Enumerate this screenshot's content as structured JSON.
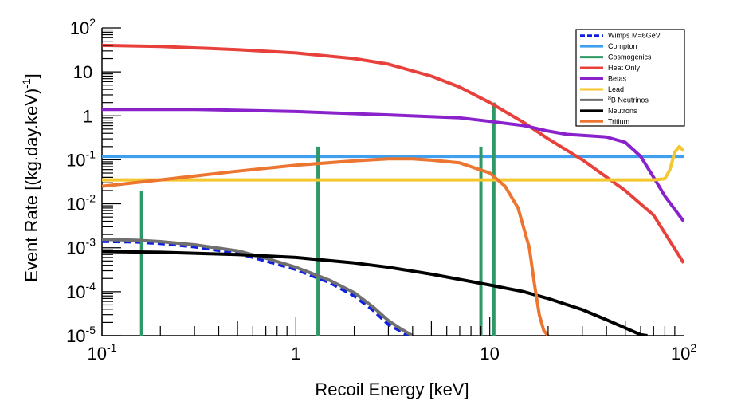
{
  "chart_data": {
    "type": "line",
    "xlabel": "Recoil Energy [keV]",
    "ylabel": "Event Rate [(kg.day.keV)",
    "ylabel_exp": "-1",
    "ylabel_close": "]",
    "x_scale": "log",
    "y_scale": "log",
    "xlim": [
      0.1,
      100
    ],
    "ylim": [
      1e-05,
      100
    ],
    "grid": false,
    "legend_position": "top-right",
    "x_ticks": [
      {
        "value": 0.1,
        "base": "10",
        "exp": "-1"
      },
      {
        "value": 1,
        "base": "1",
        "exp": ""
      },
      {
        "value": 10,
        "base": "10",
        "exp": ""
      },
      {
        "value": 100,
        "base": "10",
        "exp": "2"
      }
    ],
    "y_ticks": [
      {
        "value": 100,
        "base": "10",
        "exp": "2"
      },
      {
        "value": 10,
        "base": "10",
        "exp": ""
      },
      {
        "value": 1,
        "base": "1",
        "exp": ""
      },
      {
        "value": 0.1,
        "base": "10",
        "exp": "-1"
      },
      {
        "value": 0.01,
        "base": "10",
        "exp": "-2"
      },
      {
        "value": 0.001,
        "base": "10",
        "exp": "-3"
      },
      {
        "value": 0.0001,
        "base": "10",
        "exp": "-4"
      },
      {
        "value": 1e-05,
        "base": "10",
        "exp": "-5"
      }
    ],
    "series": [
      {
        "name": "Wimps M=6GeV",
        "color": "#1020e0",
        "dash": true,
        "width": 4,
        "x": [
          0.1,
          0.15,
          0.2,
          0.3,
          0.5,
          0.7,
          1.0,
          1.5,
          2.0,
          2.5,
          3.0,
          3.5,
          3.8
        ],
        "y": [
          0.0014,
          0.00135,
          0.00125,
          0.00105,
          0.00075,
          0.0005,
          0.00032,
          0.00016,
          8e-05,
          3.8e-05,
          1.8e-05,
          1.25e-05,
          1e-05
        ]
      },
      {
        "name": "Compton",
        "color": "#40a0ee",
        "dash": false,
        "width": 4,
        "x": [
          0.1,
          100
        ],
        "y": [
          0.12,
          0.12
        ]
      },
      {
        "name": "Cosmogenics",
        "color": "#2e9966",
        "dash": false,
        "width": 4,
        "spikes": true,
        "x": [
          0.16,
          1.3,
          9.0,
          10.5
        ],
        "y": [
          0.02,
          0.2,
          0.2,
          2.0
        ]
      },
      {
        "name": "Heat Only",
        "color": "#e8413c",
        "dash": false,
        "width": 4,
        "x": [
          0.1,
          0.2,
          0.5,
          1.0,
          2.0,
          3.0,
          5.0,
          7.0,
          10.0,
          15.0,
          20.0,
          30.0,
          50.0,
          70.0,
          100.0
        ],
        "y": [
          40,
          38,
          32,
          27,
          20,
          15,
          8,
          4.5,
          2.0,
          0.7,
          0.3,
          0.1,
          0.02,
          0.0055,
          0.00045
        ]
      },
      {
        "name": "Betas",
        "color": "#8a22cc",
        "dash": false,
        "width": 4,
        "x": [
          0.1,
          0.3,
          1.0,
          3.0,
          7.0,
          10.0,
          15.0,
          20.0,
          25.0,
          30.0,
          40.0,
          50.0,
          60.0,
          70.0,
          80.0,
          100.0
        ],
        "y": [
          1.4,
          1.4,
          1.25,
          1.05,
          0.9,
          0.75,
          0.6,
          0.45,
          0.38,
          0.36,
          0.33,
          0.25,
          0.12,
          0.04,
          0.015,
          0.004
        ]
      },
      {
        "name": "Lead",
        "color": "#f5c72e",
        "dash": false,
        "width": 4,
        "x": [
          0.1,
          10,
          70,
          80,
          85,
          90,
          95,
          100
        ],
        "y": [
          0.035,
          0.035,
          0.035,
          0.037,
          0.06,
          0.15,
          0.2,
          0.16
        ]
      },
      {
        "name": "B Neutrinos",
        "name_sup": "8",
        "color": "#707070",
        "dash": false,
        "width": 4,
        "x": [
          0.1,
          0.15,
          0.2,
          0.3,
          0.5,
          0.7,
          1.0,
          1.5,
          2.0,
          2.5,
          3.0,
          3.5,
          4.0
        ],
        "y": [
          0.00155,
          0.00148,
          0.00138,
          0.00117,
          0.00085,
          0.00058,
          0.00036,
          0.00018,
          9.5e-05,
          4.5e-05,
          2.2e-05,
          1.4e-05,
          1e-05
        ]
      },
      {
        "name": "Neutrons",
        "color": "#000000",
        "dash": false,
        "width": 4,
        "x": [
          0.1,
          0.2,
          0.5,
          1.0,
          2.0,
          3.0,
          5.0,
          10.0,
          15.0,
          20.0,
          30.0,
          40.0,
          50.0,
          60.0,
          65.0
        ],
        "y": [
          0.00082,
          0.00079,
          0.0007,
          0.0006,
          0.00045,
          0.00036,
          0.00025,
          0.000142,
          0.0001,
          7e-05,
          3.9e-05,
          2.3e-05,
          1.5e-05,
          1.05e-05,
          1e-05
        ]
      },
      {
        "name": "Tritium",
        "color": "#ec7530",
        "dash": false,
        "width": 4,
        "x": [
          0.1,
          0.2,
          0.5,
          1.0,
          2.0,
          3.0,
          4.0,
          5.0,
          7.0,
          10.0,
          12.0,
          14.0,
          16.0,
          17.0,
          18.0,
          19.0,
          20.0
        ],
        "y": [
          0.025,
          0.035,
          0.055,
          0.075,
          0.095,
          0.105,
          0.105,
          0.098,
          0.085,
          0.05,
          0.025,
          0.008,
          0.001,
          0.00015,
          3e-05,
          1.3e-05,
          1e-05
        ]
      }
    ]
  }
}
